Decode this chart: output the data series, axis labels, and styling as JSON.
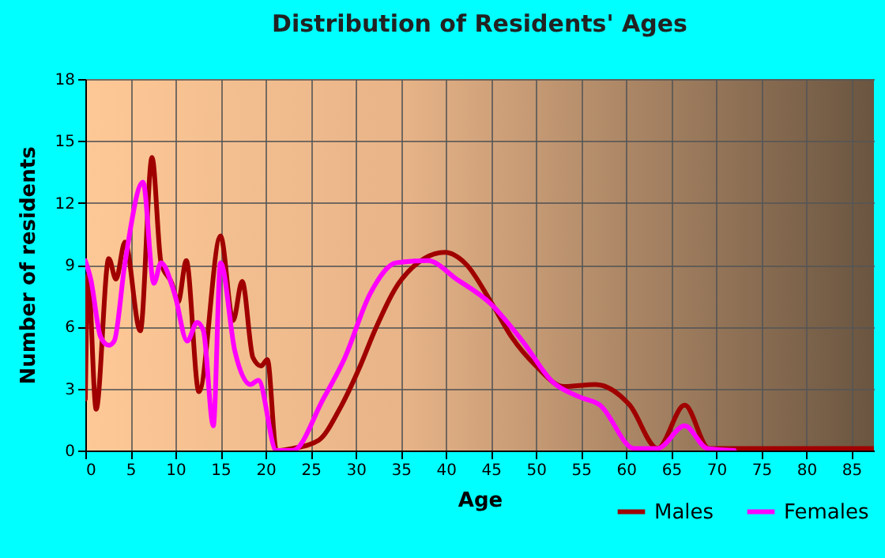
{
  "chart_data": {
    "type": "line",
    "title": "Distribution of Residents' Ages",
    "xlabel": "Age",
    "ylabel": "Number of residents",
    "xlim": [
      0,
      87.5
    ],
    "xticks": [
      0,
      5,
      10,
      15,
      20,
      25,
      30,
      35,
      40,
      45,
      50,
      55,
      60,
      65,
      70,
      75,
      80,
      85
    ],
    "ylim": [
      0,
      18
    ],
    "yticks": [
      0,
      3,
      6,
      9,
      12,
      15,
      18
    ],
    "grid": true,
    "legend": "bottom right",
    "series": [
      {
        "name": "Males",
        "color": "#a00000",
        "x": [
          0,
          0.3,
          1.2,
          2.6,
          3.4,
          4.4,
          6.1,
          7.4,
          8.4,
          9.6,
          10.3,
          11.2,
          12.6,
          15,
          16.4,
          17.4,
          18.6,
          19.5,
          20.2,
          21.2,
          23,
          25.9,
          28.2,
          30.5,
          32.2,
          35.1,
          39.9,
          42.3,
          45,
          47.3,
          50,
          53.1,
          56.6,
          60.4,
          63.5,
          66.5,
          69.2,
          87.5
        ],
        "values": [
          2.5,
          8.5,
          2.0,
          9.3,
          8.3,
          10.1,
          5.8,
          14.2,
          9.1,
          8.1,
          7.2,
          9.2,
          2.85,
          10.4,
          6.3,
          8.2,
          4.5,
          4.1,
          4.4,
          0,
          0.1,
          0.5,
          2.0,
          4.1,
          5.9,
          8.3,
          9.6,
          9.0,
          7.2,
          5.5,
          4.1,
          3.1,
          3.2,
          2.2,
          0.1,
          2.2,
          0.1,
          0.1
        ]
      },
      {
        "name": "Females",
        "color": "#ff00ff",
        "x": [
          0,
          0.6,
          1.7,
          2.6,
          3.2,
          4.4,
          6.4,
          7.6,
          8.4,
          9.9,
          11.3,
          12.4,
          13.1,
          14.2,
          15,
          16.6,
          18.3,
          19.2,
          21.2,
          23,
          26.4,
          28.7,
          31.6,
          34.5,
          38,
          41.2,
          45,
          48.5,
          51.9,
          54.8,
          57.1,
          60.9,
          63.5,
          66.5,
          69,
          72
        ],
        "values": [
          9.2,
          8.3,
          5.5,
          5.1,
          5.3,
          9.1,
          13.0,
          8.1,
          9.1,
          7.6,
          5.3,
          6.2,
          5.8,
          1.2,
          9.1,
          4.8,
          3.2,
          3.4,
          0,
          0,
          2.5,
          4.4,
          7.6,
          9.1,
          9.2,
          8.3,
          7.1,
          5.3,
          3.3,
          2.6,
          2.2,
          0.1,
          0.1,
          1.2,
          0.1,
          0
        ]
      }
    ]
  }
}
